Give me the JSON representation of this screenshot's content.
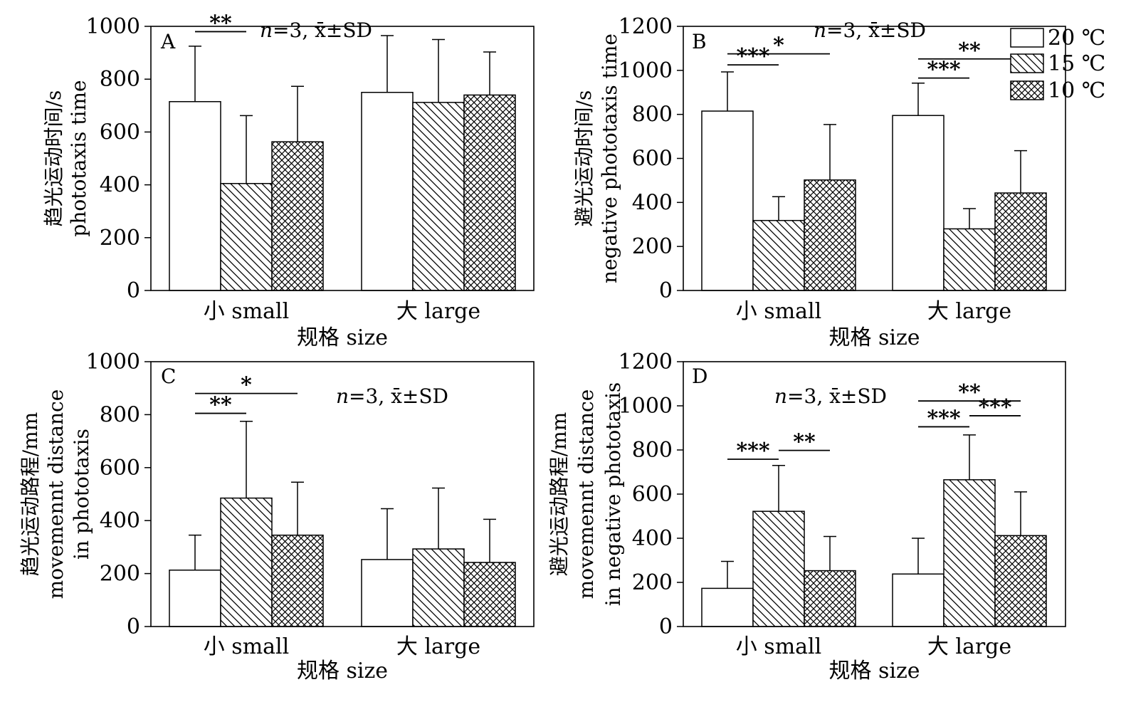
{
  "legend": [
    {
      "label": "20 ℃",
      "pattern": "none"
    },
    {
      "label": "15 ℃",
      "pattern": "diag"
    },
    {
      "label": "10 ℃",
      "pattern": "cross"
    }
  ],
  "chart_data": [
    {
      "panel": "A",
      "type": "bar",
      "stat_n": "n",
      "stat_rest": "=3,",
      "stat_mean": "x̄±SD",
      "categories": [
        "小 small",
        "大 large"
      ],
      "xlabel": "规格 size",
      "ylabel_lines": [
        "趋光运动时间/s",
        "phototaxis time"
      ],
      "ylim": [
        0,
        1000
      ],
      "yticks": [
        0,
        200,
        400,
        600,
        800,
        1000
      ],
      "series": [
        {
          "values": [
            715,
            750
          ],
          "err": [
            210,
            215
          ]
        },
        {
          "values": [
            405,
            712
          ],
          "err": [
            257,
            238
          ]
        },
        {
          "values": [
            563,
            740
          ],
          "err": [
            210,
            163
          ]
        }
      ],
      "brackets": [
        {
          "cat": 0,
          "from": 0,
          "to": 1,
          "level": 980,
          "label": "**"
        }
      ]
    },
    {
      "panel": "B",
      "type": "bar",
      "stat_n": "n",
      "stat_rest": "=3,",
      "stat_mean": "x̄±SD",
      "categories": [
        "小 small",
        "大 large"
      ],
      "xlabel": "规格 size",
      "ylabel_lines": [
        "避光运动时间/s",
        "negative phototaxis time"
      ],
      "ylim": [
        0,
        1200
      ],
      "yticks": [
        0,
        200,
        400,
        600,
        800,
        1000,
        1200
      ],
      "series": [
        {
          "values": [
            815,
            795
          ],
          "err": [
            178,
            147
          ]
        },
        {
          "values": [
            318,
            280
          ],
          "err": [
            108,
            92
          ]
        },
        {
          "values": [
            502,
            443
          ],
          "err": [
            252,
            192
          ]
        }
      ],
      "brackets": [
        {
          "cat": 0,
          "from": 0,
          "to": 1,
          "level": 1025,
          "label": "***"
        },
        {
          "cat": 0,
          "from": 0,
          "to": 2,
          "level": 1075,
          "label": "*"
        },
        {
          "cat": 1,
          "from": 0,
          "to": 1,
          "level": 965,
          "label": "***"
        },
        {
          "cat": 1,
          "from": 0,
          "to": 2,
          "level": 1052,
          "label": "**"
        }
      ]
    },
    {
      "panel": "C",
      "type": "bar",
      "stat_n": "n",
      "stat_rest": "=3,",
      "stat_mean": "x̄±SD",
      "categories": [
        "小 small",
        "大 large"
      ],
      "xlabel": "规格 size",
      "ylabel_lines": [
        "趋光运动路程/mm",
        "movemennt distance",
        "in phototaxis"
      ],
      "ylim": [
        0,
        1000
      ],
      "yticks": [
        0,
        200,
        400,
        600,
        800,
        1000
      ],
      "series": [
        {
          "values": [
            213,
            253
          ],
          "err": [
            132,
            192
          ]
        },
        {
          "values": [
            485,
            293
          ],
          "err": [
            290,
            230
          ]
        },
        {
          "values": [
            345,
            242
          ],
          "err": [
            200,
            163
          ]
        }
      ],
      "brackets": [
        {
          "cat": 0,
          "from": 0,
          "to": 1,
          "level": 805,
          "label": "**"
        },
        {
          "cat": 0,
          "from": 0,
          "to": 2,
          "level": 880,
          "label": "*"
        }
      ]
    },
    {
      "panel": "D",
      "type": "bar",
      "stat_n": "n",
      "stat_rest": "=3,",
      "stat_mean": "x̄±SD",
      "categories": [
        "小 small",
        "大 large"
      ],
      "xlabel": "规格 size",
      "ylabel_lines": [
        "避光运动路程/mm",
        "movemennt distance",
        "in negative phototaxis"
      ],
      "ylim": [
        0,
        1200
      ],
      "yticks": [
        0,
        200,
        400,
        600,
        800,
        1000,
        1200
      ],
      "series": [
        {
          "values": [
            173,
            238
          ],
          "err": [
            122,
            162
          ]
        },
        {
          "values": [
            522,
            665
          ],
          "err": [
            208,
            203
          ]
        },
        {
          "values": [
            253,
            412
          ],
          "err": [
            155,
            198
          ]
        }
      ],
      "brackets": [
        {
          "cat": 0,
          "from": 0,
          "to": 1,
          "level": 758,
          "label": "***"
        },
        {
          "cat": 0,
          "from": 1,
          "to": 2,
          "level": 798,
          "label": "**"
        },
        {
          "cat": 1,
          "from": 0,
          "to": 1,
          "level": 905,
          "label": "***"
        },
        {
          "cat": 1,
          "from": 1,
          "to": 2,
          "level": 955,
          "label": "***"
        },
        {
          "cat": 1,
          "from": 0,
          "to": 2,
          "level": 1022,
          "label": "**"
        }
      ]
    }
  ]
}
